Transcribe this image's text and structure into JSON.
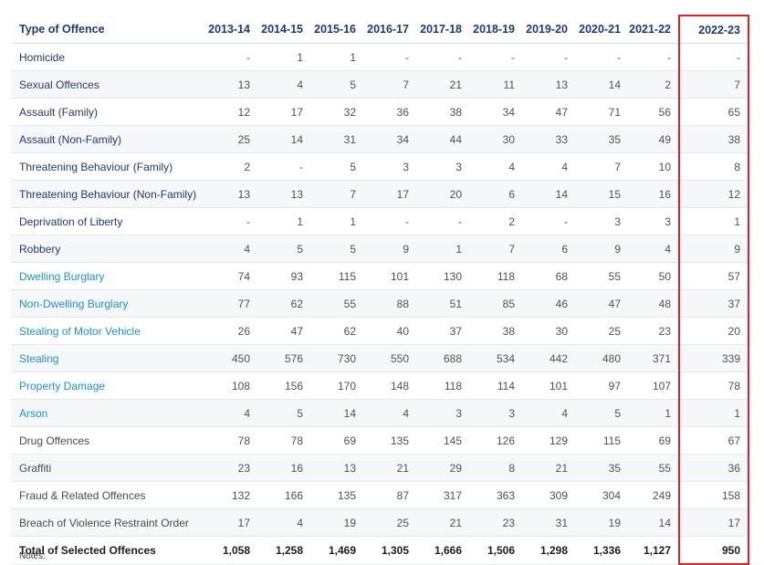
{
  "table": {
    "header_label": "Type of Offence",
    "years": [
      "2013-14",
      "2014-15",
      "2015-16",
      "2016-17",
      "2017-18",
      "2018-19",
      "2019-20",
      "2020-21",
      "2021-22",
      "2022-23"
    ],
    "rows": [
      {
        "name": "Homicide",
        "style": "navy",
        "values": [
          "-",
          "1",
          "1",
          "-",
          "-",
          "-",
          "-",
          "-",
          "-",
          "-"
        ]
      },
      {
        "name": "Sexual Offences",
        "style": "navy",
        "values": [
          "13",
          "4",
          "5",
          "7",
          "21",
          "11",
          "13",
          "14",
          "2",
          "7"
        ]
      },
      {
        "name": "Assault (Family)",
        "style": "navy",
        "values": [
          "12",
          "17",
          "32",
          "36",
          "38",
          "34",
          "47",
          "71",
          "56",
          "65"
        ]
      },
      {
        "name": "Assault (Non-Family)",
        "style": "navy",
        "values": [
          "25",
          "14",
          "31",
          "34",
          "44",
          "30",
          "33",
          "35",
          "49",
          "38"
        ]
      },
      {
        "name": "Threatening Behaviour (Family)",
        "style": "navy",
        "values": [
          "2",
          "-",
          "5",
          "3",
          "3",
          "4",
          "4",
          "7",
          "10",
          "8"
        ]
      },
      {
        "name": "Threatening Behaviour (Non-Family)",
        "style": "navy",
        "values": [
          "13",
          "13",
          "7",
          "17",
          "20",
          "6",
          "14",
          "15",
          "16",
          "12"
        ]
      },
      {
        "name": "Deprivation of Liberty",
        "style": "navy",
        "values": [
          "-",
          "1",
          "1",
          "-",
          "-",
          "2",
          "-",
          "3",
          "3",
          "1"
        ]
      },
      {
        "name": "Robbery",
        "style": "navy",
        "values": [
          "4",
          "5",
          "5",
          "9",
          "1",
          "7",
          "6",
          "9",
          "4",
          "9"
        ]
      },
      {
        "name": "Dwelling Burglary",
        "style": "blue",
        "values": [
          "74",
          "93",
          "115",
          "101",
          "130",
          "118",
          "68",
          "55",
          "50",
          "57"
        ]
      },
      {
        "name": "Non-Dwelling Burglary",
        "style": "blue",
        "values": [
          "77",
          "62",
          "55",
          "88",
          "51",
          "85",
          "46",
          "47",
          "48",
          "37"
        ]
      },
      {
        "name": "Stealing of Motor Vehicle",
        "style": "blue",
        "values": [
          "26",
          "47",
          "62",
          "40",
          "37",
          "38",
          "30",
          "25",
          "23",
          "20"
        ]
      },
      {
        "name": "Stealing",
        "style": "blue",
        "values": [
          "450",
          "576",
          "730",
          "550",
          "688",
          "534",
          "442",
          "480",
          "371",
          "339"
        ]
      },
      {
        "name": "Property Damage",
        "style": "blue",
        "values": [
          "108",
          "156",
          "170",
          "148",
          "118",
          "114",
          "101",
          "97",
          "107",
          "78"
        ]
      },
      {
        "name": "Arson",
        "style": "blue",
        "values": [
          "4",
          "5",
          "14",
          "4",
          "3",
          "3",
          "4",
          "5",
          "1",
          "1"
        ]
      },
      {
        "name": "Drug Offences",
        "style": "gray",
        "values": [
          "78",
          "78",
          "69",
          "135",
          "145",
          "126",
          "129",
          "115",
          "69",
          "67"
        ]
      },
      {
        "name": "Graffiti",
        "style": "gray",
        "values": [
          "23",
          "16",
          "13",
          "21",
          "29",
          "8",
          "21",
          "35",
          "55",
          "36"
        ]
      },
      {
        "name": "Fraud & Related Offences",
        "style": "gray",
        "values": [
          "132",
          "166",
          "135",
          "87",
          "317",
          "363",
          "309",
          "304",
          "249",
          "158"
        ]
      },
      {
        "name": "Breach of Violence Restraint Order",
        "style": "gray",
        "values": [
          "17",
          "4",
          "19",
          "25",
          "21",
          "23",
          "31",
          "19",
          "14",
          "17"
        ]
      }
    ],
    "total": {
      "name": "Total of Selected Offences",
      "values": [
        "1,058",
        "1,258",
        "1,469",
        "1,305",
        "1,666",
        "1,506",
        "1,298",
        "1,336",
        "1,127",
        "950"
      ]
    }
  },
  "notes_label": "Notes:",
  "colors": {
    "header": "#1f3a73",
    "link": "#2290cf",
    "highlight": "#e31e24"
  }
}
